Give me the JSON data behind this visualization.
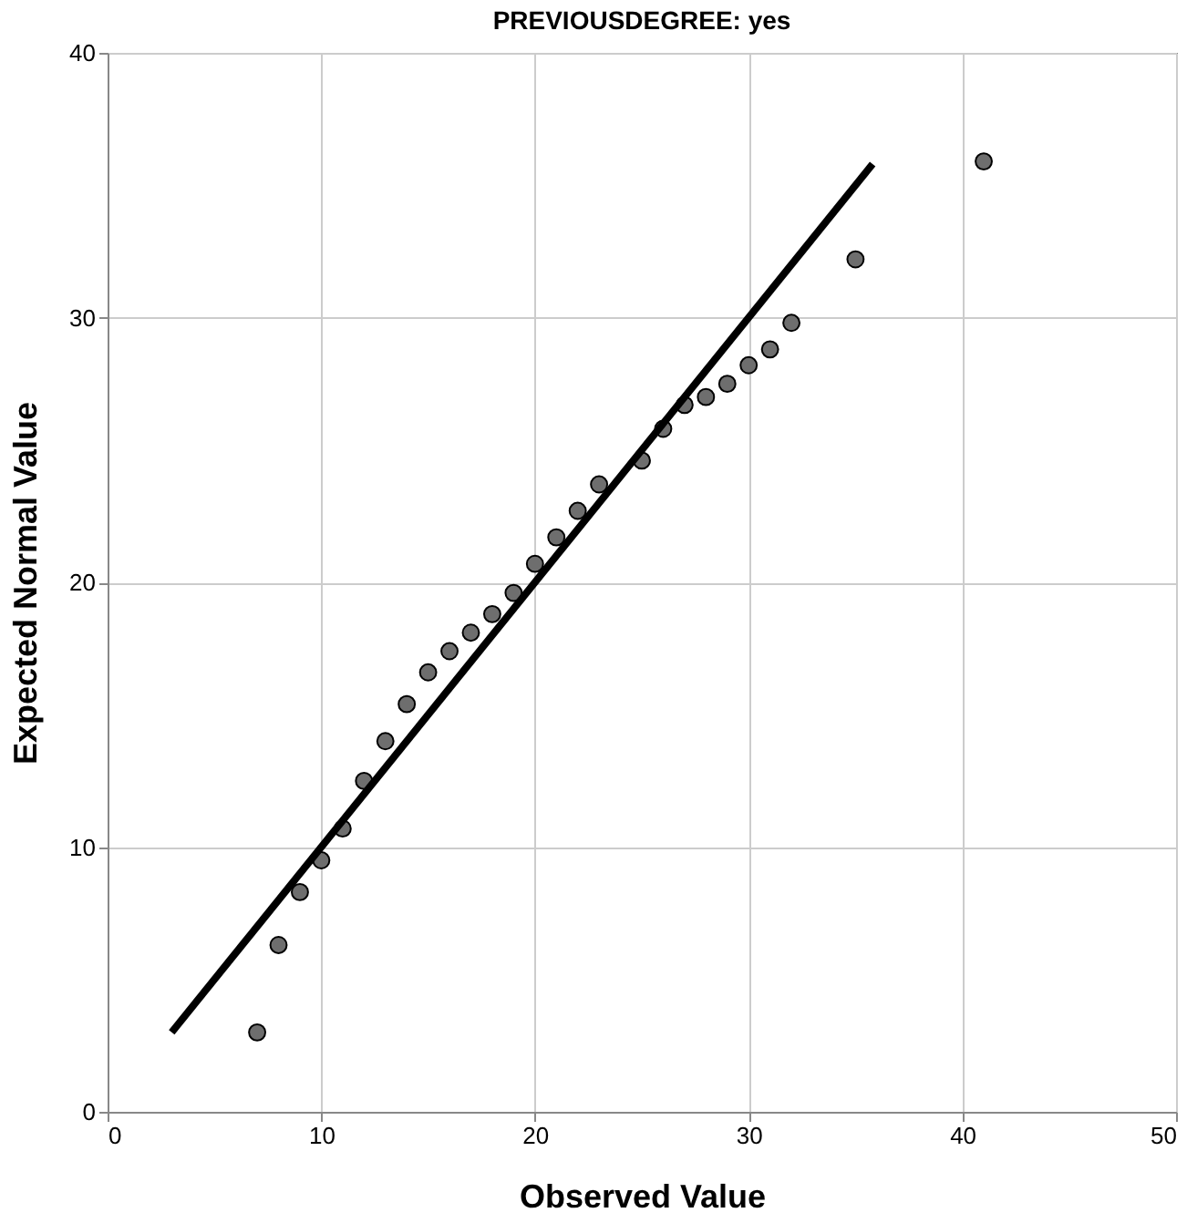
{
  "chart_data": {
    "type": "scatter",
    "title": "PREVIOUSDEGREE: yes",
    "xlabel": "Observed Value",
    "ylabel": "Expected Normal Value",
    "xlim": [
      0,
      50
    ],
    "xticks": [
      0,
      10,
      20,
      30,
      40,
      50
    ],
    "ylim": [
      0,
      40
    ],
    "yticks": [
      0,
      10,
      20,
      30,
      40
    ],
    "grid": true,
    "series": [
      {
        "color": "#6e6e6e",
        "marker": "circle",
        "x": [
          7,
          8,
          9,
          10,
          11,
          12,
          13,
          14,
          15,
          16,
          17,
          18,
          19,
          20,
          21,
          22,
          23,
          25,
          26,
          27,
          28,
          29,
          30,
          31,
          32,
          35,
          41
        ],
        "values": [
          3.0,
          6.3,
          8.3,
          9.5,
          10.7,
          12.5,
          14.0,
          15.4,
          16.6,
          17.4,
          18.1,
          18.8,
          19.6,
          20.7,
          21.7,
          22.7,
          23.7,
          24.6,
          25.8,
          26.7,
          27.0,
          27.5,
          28.2,
          28.8,
          29.8,
          32.2,
          35.9
        ]
      },
      {
        "type": "line",
        "marker": "none",
        "color": "#000000",
        "x": [
          3,
          35.8
        ],
        "values": [
          3,
          35.8
        ]
      }
    ]
  }
}
